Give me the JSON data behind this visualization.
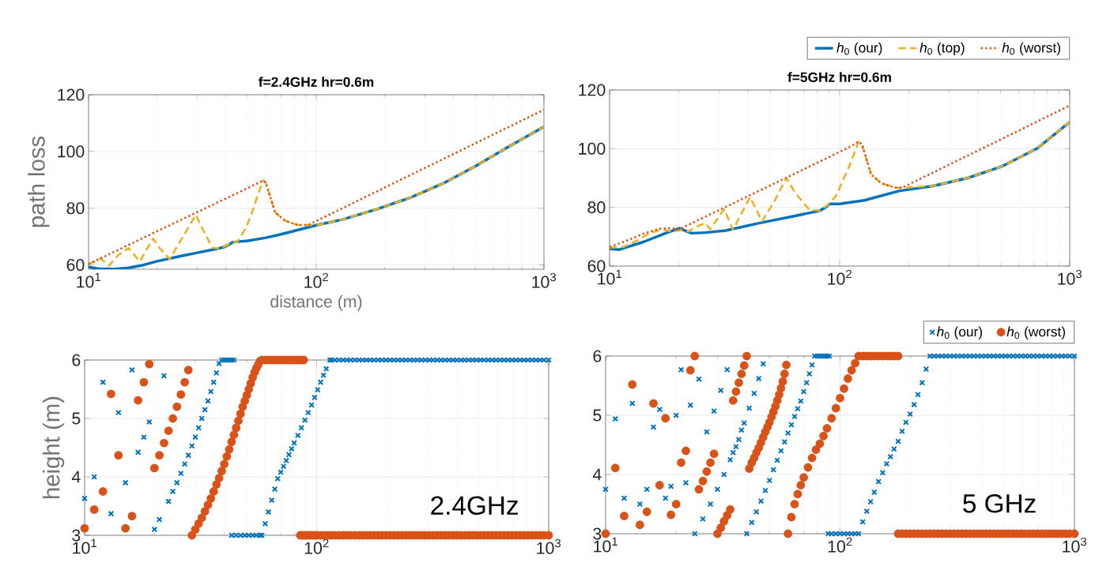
{
  "chart_data": [
    {
      "type": "line",
      "title": "f=2.4GHz hr=0.6m",
      "xlabel": "distance (m)",
      "ylabel": "path loss",
      "log": "x",
      "grid": true,
      "xlim": [
        10,
        1000
      ],
      "ylim": [
        58.5,
        120
      ],
      "xticks": [
        {
          "value": 10,
          "label": "10$^{1}$"
        },
        {
          "value": 100,
          "label": "10$^{2}$"
        },
        {
          "value": 1000,
          "label": "10$^{3}$"
        }
      ],
      "yticks": [
        60,
        80,
        100,
        120
      ],
      "series": [
        {
          "color": "#0072bd",
          "line_style": "solid",
          "x": [
            10,
            11,
            13,
            15,
            17,
            20,
            25,
            30,
            35,
            39,
            41,
            43,
            45,
            50,
            60,
            70,
            80,
            100,
            130,
            185,
            260,
            360,
            500,
            700,
            1000
          ],
          "values": [
            59.3,
            58.7,
            58.6,
            59.0,
            59.8,
            61.3,
            63.0,
            64.3,
            65.4,
            66.2,
            67.0,
            68.0,
            68.2,
            68.5,
            69.6,
            70.8,
            72.0,
            74.0,
            76.0,
            79.7,
            83.8,
            88.7,
            94.8,
            101.7,
            108.7
          ]
        },
        {
          "color": "#edb120",
          "line_style": "dashed",
          "x": [
            10,
            11.3,
            12.3,
            13.5,
            15,
            16.8,
            18,
            19.2,
            20.5,
            22.7,
            26,
            29.6,
            32,
            35,
            38,
            43,
            45,
            48.9,
            52,
            55.8,
            58.6,
            60,
            62,
            66,
            73,
            83,
            92,
            100,
            130,
            185,
            260,
            360,
            500,
            700,
            1000
          ],
          "values": [
            60.3,
            62.3,
            59.8,
            63.5,
            65.9,
            61.2,
            65.5,
            69.3,
            66,
            62.1,
            70,
            77.7,
            72,
            66.1,
            65.8,
            68.0,
            68.2,
            72.7,
            78,
            85.5,
            89.8,
            89,
            85.5,
            78.5,
            75.6,
            74.1,
            74.1,
            74.0,
            76.0,
            79.7,
            83.8,
            88.7,
            94.8,
            101.7,
            108.7
          ]
        },
        {
          "color": "#d95319",
          "line_style": "dotted",
          "x": [
            10,
            20,
            30,
            40,
            50,
            56,
            58.6,
            60,
            62,
            66,
            73,
            83,
            92,
            100,
            200,
            500,
            1000
          ],
          "values": [
            60.3,
            71.9,
            78.6,
            83.4,
            87.1,
            89,
            89.8,
            89,
            85.5,
            78.5,
            75.6,
            74.1,
            74.1,
            75.5,
            87.3,
            102.9,
            114.7
          ]
        }
      ]
    },
    {
      "type": "line",
      "title": "f=5GHz hr=0.6m",
      "log": "x",
      "grid": true,
      "legend": "top right",
      "xlim": [
        10,
        1000
      ],
      "ylim": [
        60,
        120
      ],
      "xticks": [
        {
          "value": 10,
          "label": "10$^{1}$"
        },
        {
          "value": 100,
          "label": "10$^{2}$"
        },
        {
          "value": 1000,
          "label": "10$^{3}$"
        }
      ],
      "yticks": [
        60,
        80,
        100,
        120
      ],
      "series": [
        {
          "name": "*h*$_{0}$ (our)",
          "color": "#0072bd",
          "line_style": "solid",
          "x": [
            10,
            11,
            14,
            17.8,
            20.1,
            22.7,
            26,
            32,
            45,
            64,
            81.5,
            87,
            90.5,
            100,
            128,
            181,
            255,
            360,
            509,
            719,
            1000
          ],
          "values": [
            65.9,
            65.6,
            68.2,
            71.4,
            72.9,
            71.2,
            71.4,
            72.1,
            74.7,
            77.1,
            78.8,
            80,
            81.2,
            81.2,
            82.4,
            85.6,
            87.3,
            90,
            94,
            100,
            109.1
          ]
        },
        {
          "name": "*h*$_{0}$ (top)",
          "color": "#edb120",
          "line_style": "dashed",
          "x": [
            10,
            11.5,
            13,
            14.5,
            16.6,
            19,
            20.5,
            22,
            24,
            26,
            27.4,
            31.5,
            34.4,
            40.8,
            46,
            52,
            58.7,
            64,
            73.5,
            81.5,
            88,
            96.8,
            111,
            121,
            125,
            130,
            137,
            152,
            175,
            187,
            255,
            360,
            509,
            719,
            1000
          ],
          "values": [
            66.3,
            66.5,
            68.5,
            70.6,
            72.4,
            71.8,
            72.3,
            71.8,
            73.5,
            74.7,
            72.6,
            79.4,
            72.4,
            83.5,
            75.3,
            82,
            90,
            85,
            79.4,
            78.8,
            80.5,
            84.1,
            94.7,
            102.4,
            101.5,
            97.1,
            91.2,
            88.2,
            86.7,
            86.7,
            87.3,
            90,
            94,
            100,
            109.1
          ]
        },
        {
          "name": "*h*$_{0}$ (worst)",
          "color": "#d95319",
          "line_style": "dotted",
          "x": [
            10,
            12,
            14,
            16.6,
            18.5,
            20,
            30,
            50,
            80,
            110,
            121,
            125,
            130,
            137,
            152,
            175,
            187,
            300,
            500,
            1000
          ],
          "values": [
            66.5,
            68.8,
            71.0,
            72.8,
            72.9,
            72.5,
            79.1,
            87.5,
            95.2,
            100.5,
            102.4,
            101.5,
            97.1,
            91.2,
            88.2,
            86.7,
            86.7,
            94.6,
            103.1,
            114.7
          ]
        }
      ]
    },
    {
      "type": "scatter",
      "ylabel": "height (m)",
      "log": "x",
      "grid": true,
      "annotations": [
        "2.4GHz"
      ],
      "xlim": [
        10,
        1000
      ],
      "ylim": [
        3,
        6
      ],
      "xticks": [
        {
          "value": 10,
          "label": "10$^{1}$"
        },
        {
          "value": 100,
          "label": "10$^{2}$"
        },
        {
          "value": 1000,
          "label": "10$^{3}$"
        }
      ],
      "yticks": [
        3,
        4,
        5,
        6
      ],
      "series": [
        {
          "color": "#0072bd",
          "marker": "cross",
          "x": [
            10,
            11,
            12,
            13,
            14,
            15,
            16,
            17,
            18,
            19,
            20,
            21,
            22,
            23,
            24,
            25,
            26,
            27,
            28,
            29,
            30,
            31,
            32,
            33,
            34,
            35,
            36,
            37,
            38,
            39,
            40,
            41,
            42,
            43,
            44,
            43,
            45,
            47,
            49,
            51,
            53,
            55,
            57,
            58,
            60,
            62,
            64,
            66,
            68,
            70,
            72,
            74,
            76,
            78,
            80,
            83,
            86,
            89,
            92,
            95,
            98,
            101,
            104,
            107,
            110,
            114,
            116,
            120,
            125,
            130,
            135,
            140,
            146,
            152,
            158,
            164,
            170,
            177,
            184,
            191,
            199,
            207,
            215,
            224,
            233,
            242,
            252,
            262,
            272,
            283,
            294,
            306,
            318,
            331,
            344,
            358,
            372,
            387,
            402,
            418,
            435,
            452,
            470,
            489,
            508,
            528,
            549,
            571,
            594,
            618,
            643,
            669,
            696,
            724,
            753,
            783,
            814,
            847,
            881,
            916,
            953,
            1000
          ],
          "values": [
            3.63,
            4.0,
            5.62,
            3.37,
            5.1,
            3.9,
            5.83,
            4.42,
            4.68,
            4.94,
            3.1,
            3.27,
            5.73,
            3.58,
            3.75,
            3.9,
            4.06,
            4.22,
            4.37,
            4.53,
            4.68,
            4.84,
            5.0,
            5.15,
            5.3,
            5.46,
            5.62,
            5.78,
            5.94,
            6,
            6,
            6,
            6,
            6,
            6,
            3,
            3,
            3,
            3,
            3,
            3,
            3,
            3,
            3.0,
            3.2,
            3.4,
            3.6,
            3.79,
            3.97,
            4.08,
            4.18,
            4.28,
            4.38,
            4.48,
            4.58,
            4.71,
            4.84,
            4.97,
            5.1,
            5.23,
            5.36,
            5.49,
            5.62,
            5.74,
            5.85,
            6.0,
            6,
            6,
            6,
            6,
            6,
            6,
            6,
            6,
            6,
            6,
            6,
            6,
            6,
            6,
            6,
            6,
            6,
            6,
            6,
            6,
            6,
            6,
            6,
            6,
            6,
            6,
            6,
            6,
            6,
            6,
            6,
            6,
            6,
            6,
            6,
            6,
            6,
            6,
            6,
            6,
            6,
            6,
            6,
            6,
            6,
            6,
            6,
            6,
            6,
            6,
            6,
            6,
            6,
            6,
            6,
            6
          ]
        },
        {
          "color": "#d95319",
          "marker": "circle",
          "x": [
            10,
            11,
            12,
            13,
            14,
            15,
            16,
            17,
            18,
            19,
            20,
            21,
            22,
            23,
            24,
            25,
            26,
            27,
            28,
            29,
            30,
            31,
            32,
            33,
            34,
            35,
            36,
            37,
            38,
            39,
            40,
            41,
            42,
            43,
            44,
            45,
            46,
            47,
            48,
            49,
            50,
            51,
            52,
            53,
            54,
            55,
            56,
            57,
            58,
            60,
            62,
            64,
            66,
            68,
            70,
            72,
            74,
            76,
            78,
            80,
            82,
            84,
            86,
            88,
            85,
            86.5,
            88.5,
            90,
            92,
            94,
            96,
            98,
            100,
            104,
            108,
            112,
            116,
            120,
            125,
            130,
            135,
            140,
            146,
            152,
            158,
            164,
            170,
            177,
            184,
            191,
            199,
            207,
            215,
            224,
            233,
            242,
            252,
            262,
            272,
            283,
            294,
            306,
            318,
            331,
            344,
            358,
            372,
            387,
            402,
            418,
            435,
            452,
            470,
            489,
            508,
            528,
            549,
            571,
            594,
            618,
            643,
            669,
            696,
            724,
            753,
            783,
            814,
            847,
            881,
            916,
            953,
            1000
          ],
          "values": [
            3.12,
            3.44,
            3.75,
            5.42,
            4.37,
            3.12,
            3.33,
            5.31,
            5.62,
            5.93,
            4.15,
            4.37,
            4.58,
            4.79,
            5.0,
            5.2,
            5.41,
            5.62,
            5.83,
            3.0,
            3.1,
            3.2,
            3.3,
            3.41,
            3.52,
            3.63,
            3.75,
            3.87,
            3.98,
            4.1,
            4.22,
            4.35,
            4.47,
            4.6,
            4.72,
            4.84,
            4.96,
            5.08,
            5.2,
            5.3,
            5.4,
            5.5,
            5.6,
            5.7,
            5.79,
            5.86,
            5.92,
            5.98,
            6.0,
            6,
            6,
            6,
            6,
            6,
            6,
            6,
            6,
            6,
            6,
            6,
            6,
            6,
            6,
            6,
            3,
            3,
            3,
            3,
            3,
            3,
            3,
            3,
            3,
            3,
            3,
            3,
            3,
            3,
            3,
            3,
            3,
            3,
            3,
            3,
            3,
            3,
            3,
            3,
            3,
            3,
            3,
            3,
            3,
            3,
            3,
            3,
            3,
            3,
            3,
            3,
            3,
            3,
            3,
            3,
            3,
            3,
            3,
            3,
            3,
            3,
            3,
            3,
            3,
            3,
            3,
            3,
            3,
            3,
            3,
            3,
            3,
            3,
            3,
            3,
            3,
            3,
            3,
            3,
            3,
            3,
            3,
            3
          ]
        }
      ]
    },
    {
      "type": "scatter",
      "log": "x",
      "grid": true,
      "legend": "top right",
      "annotations": [
        "5 GHz"
      ],
      "xlim": [
        10,
        1000
      ],
      "ylim": [
        3,
        6
      ],
      "xticks": [
        {
          "value": 10,
          "label": "10$^{1}$"
        },
        {
          "value": 100,
          "label": "10$^{2}$"
        },
        {
          "value": 1000,
          "label": "10$^{3}$"
        }
      ],
      "yticks": [
        3,
        4,
        5,
        6
      ],
      "series": [
        {
          "name": "*h*$_{0}$ (our)",
          "color": "#0072bd",
          "marker": "cross",
          "x": [
            10,
            11,
            12,
            13,
            14,
            15,
            16,
            17,
            18,
            19,
            20,
            21,
            22,
            23,
            24,
            25,
            26,
            27,
            28,
            29,
            30,
            31,
            32,
            33,
            34,
            35,
            36,
            37,
            38,
            39,
            41,
            43,
            45,
            47,
            40,
            42,
            44,
            46,
            48,
            50,
            52,
            54,
            56,
            58,
            60,
            62,
            64,
            66,
            68,
            70,
            72,
            74,
            76,
            78,
            80,
            82,
            84,
            86,
            88,
            90,
            89,
            92,
            96,
            100,
            104,
            108,
            112,
            116,
            120,
            125,
            130,
            135,
            140,
            146,
            152,
            158,
            164,
            170,
            177,
            184,
            191,
            199,
            207,
            215,
            224,
            233,
            242,
            252,
            262,
            272,
            283,
            294,
            306,
            318,
            331,
            344,
            358,
            372,
            387,
            402,
            418,
            435,
            452,
            470,
            489,
            508,
            528,
            549,
            571,
            594,
            618,
            643,
            669,
            696,
            724,
            753,
            783,
            814,
            847,
            881,
            916,
            953,
            1000
          ],
          "values": [
            3.75,
            4.94,
            3.6,
            5.2,
            3.5,
            3.75,
            4.8,
            5.1,
            3.6,
            3.8,
            5.0,
            5.77,
            3.86,
            5.17,
            3.0,
            5.61,
            3.25,
            4.72,
            3.5,
            5.07,
            3.75,
            5.42,
            4.0,
            5.77,
            4.25,
            4.37,
            4.47,
            4.59,
            4.75,
            4.87,
            5.12,
            5.37,
            5.62,
            5.87,
            3.0,
            3.19,
            3.37,
            3.55,
            3.73,
            3.9,
            4.08,
            4.24,
            4.4,
            4.55,
            4.7,
            4.84,
            4.98,
            5.11,
            5.24,
            5.4,
            5.55,
            5.7,
            5.85,
            6.0,
            6,
            6,
            6,
            6,
            6,
            6,
            3,
            3,
            3,
            3,
            3,
            3,
            3,
            3,
            3.0,
            3.2,
            3.38,
            3.54,
            3.7,
            3.88,
            4.03,
            4.18,
            4.3,
            4.43,
            4.56,
            4.73,
            4.88,
            5.02,
            5.18,
            5.35,
            5.55,
            5.78,
            6.0,
            6,
            6,
            6,
            6,
            6,
            6,
            6,
            6,
            6,
            6,
            6,
            6,
            6,
            6,
            6,
            6,
            6,
            6,
            6,
            6,
            6,
            6,
            6,
            6,
            6,
            6,
            6,
            6,
            6,
            6,
            6,
            6,
            6,
            6,
            6,
            6
          ]
        },
        {
          "name": "*h*$_{0}$ (worst)",
          "color": "#d95319",
          "marker": "circle",
          "x": [
            10,
            11,
            12,
            13,
            14,
            15,
            16,
            17,
            18,
            19,
            20,
            21,
            22,
            23,
            24,
            25,
            26,
            27,
            28,
            29,
            30,
            31,
            32,
            33,
            34,
            35,
            36,
            37,
            38,
            39,
            40,
            41,
            42,
            43,
            44,
            45,
            46,
            47,
            48,
            49,
            50,
            51,
            52,
            53,
            54,
            55,
            56,
            57,
            58,
            59,
            60,
            62,
            64,
            66,
            68,
            70,
            73,
            76,
            79,
            82,
            85,
            88,
            92,
            96,
            100,
            104,
            108,
            112,
            116,
            120,
            125,
            130,
            135,
            140,
            146,
            152,
            158,
            164,
            170,
            177,
            177,
            184,
            191,
            199,
            207,
            215,
            224,
            233,
            242,
            252,
            262,
            272,
            283,
            294,
            306,
            318,
            331,
            344,
            358,
            372,
            387,
            402,
            418,
            435,
            452,
            470,
            489,
            508,
            528,
            549,
            571,
            594,
            618,
            643,
            669,
            696,
            724,
            753,
            783,
            814,
            847,
            881,
            916,
            953,
            1000
          ],
          "values": [
            3.0,
            4.11,
            3.3,
            5.52,
            3.15,
            3.37,
            5.2,
            3.82,
            4.95,
            3.32,
            3.5,
            4.2,
            4.4,
            5.76,
            6.0,
            3.75,
            3.89,
            4.05,
            4.2,
            4.35,
            3.0,
            3.1,
            3.21,
            3.31,
            3.41,
            5.25,
            5.4,
            5.55,
            5.7,
            5.84,
            6.0,
            4.1,
            4.2,
            4.28,
            4.37,
            4.45,
            4.54,
            4.63,
            4.72,
            4.8,
            4.88,
            4.97,
            5.06,
            5.15,
            5.25,
            5.35,
            5.46,
            5.57,
            5.7,
            5.85,
            3.0,
            3.28,
            3.5,
            3.67,
            3.82,
            3.95,
            4.12,
            4.28,
            4.42,
            4.52,
            4.65,
            4.78,
            4.95,
            5.12,
            5.29,
            5.45,
            5.62,
            5.76,
            5.88,
            6.0,
            6,
            6,
            6,
            6,
            6,
            6,
            6,
            6,
            6,
            6,
            3,
            3,
            3,
            3,
            3,
            3,
            3,
            3,
            3,
            3,
            3,
            3,
            3,
            3,
            3,
            3,
            3,
            3,
            3,
            3,
            3,
            3,
            3,
            3,
            3,
            3,
            3,
            3,
            3,
            3,
            3,
            3,
            3,
            3,
            3,
            3,
            3,
            3,
            3,
            3,
            3,
            3,
            3,
            3,
            3
          ]
        }
      ]
    }
  ]
}
